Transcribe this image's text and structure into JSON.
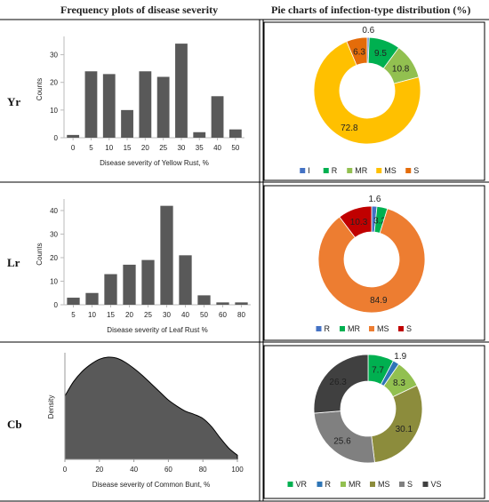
{
  "headers": {
    "left": "Frequency plots of disease severity",
    "right": "Pie charts of infection-type distribution (%)"
  },
  "rows": [
    {
      "label": "Yr"
    },
    {
      "label": "Lr"
    },
    {
      "label": "Cb"
    }
  ],
  "colors": {
    "bar": "#595959",
    "density": "#595959",
    "I": "#4472c4",
    "R": "#00b050",
    "MR": "#92c050",
    "MS": "#ffc000",
    "MS_lr": "#ed7d31",
    "S_yr": "#e46c0a",
    "S_lr": "#c00000",
    "VR": "#00b050",
    "R_cb": "#2e75b6",
    "MR_cb": "#92c050",
    "MS_cb": "#8c8c3c",
    "S_cb": "#808080",
    "VS": "#404040"
  },
  "chart_data": [
    {
      "id": "yr-bar",
      "type": "bar",
      "categories": [
        "0",
        "5",
        "10",
        "15",
        "20",
        "25",
        "30",
        "35",
        "40",
        "50"
      ],
      "values": [
        1,
        24,
        23,
        10,
        24,
        22,
        34,
        2,
        15,
        3
      ],
      "xlabel": "Disease severity of Yellow Rust, %",
      "ylabel": "Counts",
      "ylim": [
        0,
        35
      ],
      "yticks": [
        0,
        10,
        20,
        30
      ]
    },
    {
      "id": "yr-pie",
      "type": "pie",
      "labels": [
        "I",
        "R",
        "MR",
        "MS",
        "S"
      ],
      "values": [
        0.6,
        9.5,
        10.8,
        72.8,
        6.3
      ],
      "value_labels": [
        "0.6",
        "9.5",
        "10.8",
        "72.8",
        "6.3"
      ],
      "colors": [
        "#4472c4",
        "#00b050",
        "#92c050",
        "#ffc000",
        "#e46c0a"
      ],
      "legend": "bottom"
    },
    {
      "id": "lr-bar",
      "type": "bar",
      "categories": [
        "5",
        "10",
        "15",
        "20",
        "25",
        "30",
        "40",
        "50",
        "60",
        "80"
      ],
      "values": [
        3,
        5,
        13,
        17,
        19,
        42,
        21,
        4,
        1,
        1
      ],
      "xlabel": "Disease severity of Leaf Rust %",
      "ylabel": "Counts",
      "ylim": [
        0,
        43
      ],
      "yticks": [
        0,
        10,
        20,
        30,
        40
      ]
    },
    {
      "id": "lr-pie",
      "type": "pie",
      "labels": [
        "R",
        "MR",
        "MS",
        "S"
      ],
      "values": [
        1.6,
        3.2,
        84.9,
        10.3
      ],
      "value_labels": [
        "1.6",
        "3.2",
        "84.9",
        "10.3"
      ],
      "colors": [
        "#4472c4",
        "#00b050",
        "#ed7d31",
        "#c00000"
      ],
      "legend": "bottom"
    },
    {
      "id": "cb-density",
      "type": "area",
      "x": [
        0,
        5,
        10,
        15,
        20,
        25,
        30,
        35,
        40,
        45,
        50,
        55,
        60,
        65,
        70,
        75,
        80,
        85,
        90,
        95,
        100
      ],
      "y": [
        0.62,
        0.76,
        0.86,
        0.93,
        0.98,
        1.0,
        0.99,
        0.95,
        0.89,
        0.82,
        0.74,
        0.66,
        0.58,
        0.52,
        0.47,
        0.44,
        0.4,
        0.32,
        0.21,
        0.11,
        0.04
      ],
      "xlabel": "Disease severity of Common Bunt, %",
      "ylabel": "Density",
      "xlim": [
        0,
        100
      ],
      "xticks": [
        0,
        20,
        40,
        60,
        80,
        100
      ]
    },
    {
      "id": "cb-pie",
      "type": "pie",
      "labels": [
        "VR",
        "R",
        "MR",
        "MS",
        "S",
        "VS"
      ],
      "values": [
        7.7,
        1.9,
        8.3,
        30.1,
        25.6,
        26.3
      ],
      "value_labels": [
        "7.7",
        "1.9",
        "8.3",
        "30.1",
        "25.6",
        "26.3"
      ],
      "colors": [
        "#00b050",
        "#2e75b6",
        "#92c050",
        "#8c8c3c",
        "#808080",
        "#404040"
      ],
      "legend": "bottom"
    }
  ]
}
